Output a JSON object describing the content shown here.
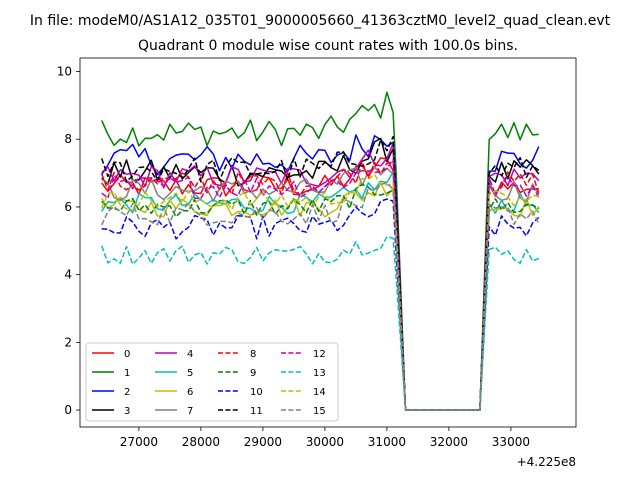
{
  "figure": {
    "suptitle": "In file: modeM0/AS1A12_035T01_9000005660_41363cztM0_level2_quad_clean.evt",
    "title": "Quadrant 0 module wise count rates with 100.0s bins.",
    "offset_label": "+4.225e8"
  },
  "chart_data": {
    "type": "line",
    "title": "Quadrant 0 module wise count rates with 100.0s bins.",
    "xlabel": "",
    "ylabel": "",
    "x_offset": 422500000,
    "xlim": [
      26050,
      34050
    ],
    "ylim": [
      -0.5,
      10.4
    ],
    "x_ticks": [
      27000,
      28000,
      29000,
      30000,
      31000,
      32000,
      33000
    ],
    "y_ticks": [
      0,
      2,
      4,
      6,
      8,
      10
    ],
    "grid": false,
    "legend": {
      "placement": "lower-left",
      "columns": 4
    },
    "segments": [
      [
        26400,
        31200
      ],
      [
        32600,
        33500
      ]
    ],
    "gap_zero": [
      31300,
      32500
    ],
    "bin_width": 100,
    "series": [
      {
        "name": "0",
        "color": "#ff0000",
        "dash": "solid",
        "level": 6.6,
        "noise": 0.35
      },
      {
        "name": "1",
        "color": "#008000",
        "dash": "solid",
        "level": 8.2,
        "noise": 0.4
      },
      {
        "name": "2",
        "color": "#0000ff",
        "dash": "solid",
        "level": 7.4,
        "noise": 0.45
      },
      {
        "name": "3",
        "color": "#000000",
        "dash": "solid",
        "level": 7.0,
        "noise": 0.4
      },
      {
        "name": "4",
        "color": "#bf00bf",
        "dash": "solid",
        "level": 6.9,
        "noise": 0.35
      },
      {
        "name": "5",
        "color": "#00bfbf",
        "dash": "solid",
        "level": 6.1,
        "noise": 0.3
      },
      {
        "name": "6",
        "color": "#bfbf00",
        "dash": "solid",
        "level": 6.0,
        "noise": 0.3
      },
      {
        "name": "7",
        "color": "#808080",
        "dash": "solid",
        "level": 6.5,
        "noise": 0.35
      },
      {
        "name": "8",
        "color": "#ff0000",
        "dash": "dashed",
        "level": 6.7,
        "noise": 0.35
      },
      {
        "name": "9",
        "color": "#008000",
        "dash": "dashed",
        "level": 6.0,
        "noise": 0.3
      },
      {
        "name": "10",
        "color": "#0000ff",
        "dash": "dashed",
        "level": 5.4,
        "noise": 0.35
      },
      {
        "name": "11",
        "color": "#000000",
        "dash": "dashed",
        "level": 7.1,
        "noise": 0.4
      },
      {
        "name": "12",
        "color": "#bf00bf",
        "dash": "dashed",
        "level": 6.6,
        "noise": 0.35
      },
      {
        "name": "13",
        "color": "#00bfbf",
        "dash": "dashed",
        "level": 4.6,
        "noise": 0.3
      },
      {
        "name": "14",
        "color": "#bfbf00",
        "dash": "dashed",
        "level": 6.2,
        "noise": 0.3
      },
      {
        "name": "15",
        "color": "#808080",
        "dash": "dashed",
        "level": 5.8,
        "noise": 0.35
      }
    ]
  }
}
